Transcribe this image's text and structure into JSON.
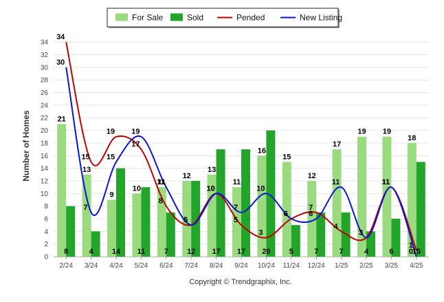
{
  "chart_data": {
    "type": "bar",
    "categories": [
      "2/24",
      "3/24",
      "4/24",
      "5/24",
      "6/24",
      "7/24",
      "8/24",
      "9/24",
      "10/24",
      "11/24",
      "12/24",
      "1/25",
      "2/25",
      "3/25",
      "4/25"
    ],
    "series": [
      {
        "name": "For Sale",
        "kind": "bar",
        "color": "#9bdb7f",
        "values": [
          21,
          13,
          9,
          10,
          11,
          12,
          13,
          11,
          16,
          15,
          12,
          17,
          19,
          19,
          18
        ]
      },
      {
        "name": "Sold",
        "kind": "bar",
        "color": "#22a52a",
        "values": [
          8,
          4,
          14,
          11,
          7,
          12,
          17,
          17,
          20,
          5,
          7,
          7,
          4,
          6,
          15
        ]
      },
      {
        "name": "Pended",
        "kind": "line",
        "color": "#c00000",
        "values": [
          34,
          15,
          19,
          17,
          8,
          5,
          10,
          5,
          3,
          6,
          7,
          4,
          3,
          11,
          1
        ]
      },
      {
        "name": "New Listing",
        "kind": "line",
        "color": "#0a14d8",
        "values": [
          30,
          7,
          15,
          19,
          11,
          5,
          10,
          7,
          10,
          6,
          6,
          11,
          3,
          11,
          0
        ]
      }
    ],
    "ylabel": "Number of Homes",
    "xlabel": "",
    "ylim": [
      0,
      35
    ],
    "yticks": [
      0,
      2,
      4,
      6,
      8,
      10,
      12,
      14,
      16,
      18,
      20,
      22,
      24,
      26,
      28,
      30,
      32,
      34
    ],
    "grid": true,
    "legend_position": "top-center"
  },
  "footer": {
    "copyright": "Copyright © Trendgraphix, Inc."
  }
}
